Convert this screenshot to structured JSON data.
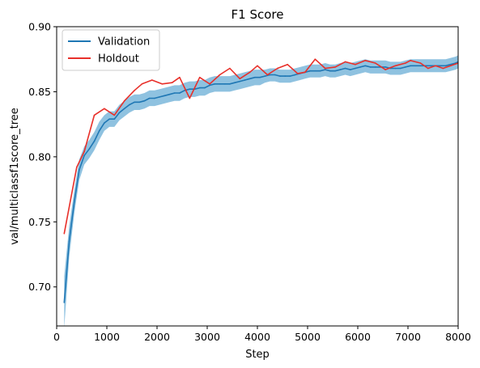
{
  "chart_data": {
    "type": "line",
    "title": "F1 Score",
    "xlabel": "Step",
    "ylabel": "val/multiclassf1score_tree",
    "xlim": [
      0,
      8000
    ],
    "ylim": [
      0.67,
      0.9
    ],
    "xticks": [
      0,
      1000,
      2000,
      3000,
      4000,
      5000,
      6000,
      7000,
      8000
    ],
    "xtick_labels": [
      "0",
      "1000",
      "2000",
      "3000",
      "4000",
      "5000",
      "6000",
      "7000",
      "8000"
    ],
    "yticks": [
      0.7,
      0.75,
      0.8,
      0.85,
      0.9
    ],
    "ytick_labels": [
      "0.70",
      "0.75",
      "0.80",
      "0.85",
      "0.90"
    ],
    "grid": false,
    "legend_position": "top-left",
    "series": [
      {
        "name": "Validation",
        "color": "#1f77b4",
        "band_color": "#6aaed6",
        "x": [
          150,
          250,
          350,
          450,
          550,
          650,
          750,
          850,
          950,
          1050,
          1150,
          1250,
          1350,
          1450,
          1550,
          1650,
          1750,
          1850,
          1950,
          2050,
          2150,
          2250,
          2350,
          2450,
          2550,
          2650,
          2750,
          2850,
          2950,
          3050,
          3150,
          3250,
          3350,
          3450,
          3550,
          3650,
          3750,
          3850,
          3950,
          4050,
          4150,
          4250,
          4350,
          4450,
          4550,
          4650,
          4750,
          4850,
          4950,
          5050,
          5150,
          5250,
          5350,
          5450,
          5550,
          5650,
          5750,
          5850,
          5950,
          6050,
          6150,
          6250,
          6350,
          6450,
          6550,
          6650,
          6750,
          6850,
          6950,
          7050,
          7150,
          7250,
          7350,
          7450,
          7550,
          7650,
          7750,
          7850,
          7950,
          8000
        ],
        "values": [
          0.688,
          0.735,
          0.765,
          0.79,
          0.801,
          0.806,
          0.812,
          0.82,
          0.826,
          0.829,
          0.829,
          0.834,
          0.837,
          0.84,
          0.842,
          0.842,
          0.843,
          0.845,
          0.845,
          0.846,
          0.847,
          0.848,
          0.849,
          0.849,
          0.851,
          0.852,
          0.852,
          0.853,
          0.853,
          0.855,
          0.856,
          0.856,
          0.856,
          0.856,
          0.857,
          0.858,
          0.859,
          0.86,
          0.861,
          0.861,
          0.862,
          0.863,
          0.863,
          0.862,
          0.862,
          0.862,
          0.863,
          0.864,
          0.865,
          0.866,
          0.866,
          0.866,
          0.867,
          0.866,
          0.866,
          0.867,
          0.868,
          0.867,
          0.868,
          0.869,
          0.87,
          0.869,
          0.869,
          0.869,
          0.869,
          0.868,
          0.868,
          0.868,
          0.869,
          0.87,
          0.87,
          0.87,
          0.87,
          0.87,
          0.87,
          0.87,
          0.87,
          0.871,
          0.872,
          0.873
        ],
        "band_halfwidth": [
          0.02,
          0.012,
          0.009,
          0.008,
          0.007,
          0.007,
          0.007,
          0.007,
          0.006,
          0.006,
          0.006,
          0.006,
          0.006,
          0.006,
          0.006,
          0.006,
          0.006,
          0.006,
          0.006,
          0.006,
          0.006,
          0.006,
          0.006,
          0.006,
          0.006,
          0.006,
          0.006,
          0.006,
          0.006,
          0.006,
          0.006,
          0.006,
          0.006,
          0.006,
          0.006,
          0.006,
          0.006,
          0.006,
          0.006,
          0.006,
          0.005,
          0.005,
          0.005,
          0.005,
          0.005,
          0.005,
          0.005,
          0.005,
          0.005,
          0.005,
          0.005,
          0.005,
          0.005,
          0.005,
          0.005,
          0.005,
          0.005,
          0.005,
          0.005,
          0.005,
          0.005,
          0.005,
          0.005,
          0.005,
          0.005,
          0.005,
          0.005,
          0.005,
          0.005,
          0.005,
          0.005,
          0.005,
          0.005,
          0.005,
          0.005,
          0.005,
          0.005,
          0.005,
          0.005,
          0.005
        ]
      },
      {
        "name": "Holdout",
        "color": "#e8302a",
        "x": [
          150,
          400,
          550,
          750,
          950,
          1150,
          1350,
          1550,
          1700,
          1900,
          2100,
          2300,
          2450,
          2650,
          2850,
          3050,
          3250,
          3450,
          3650,
          3850,
          4000,
          4200,
          4400,
          4600,
          4800,
          4950,
          5150,
          5350,
          5550,
          5750,
          5950,
          6150,
          6350,
          6550,
          6750,
          6950,
          7050,
          7250,
          7400,
          7550,
          7700,
          7850,
          8000
        ],
        "values": [
          0.741,
          0.792,
          0.804,
          0.832,
          0.837,
          0.832,
          0.843,
          0.851,
          0.856,
          0.859,
          0.856,
          0.857,
          0.861,
          0.845,
          0.861,
          0.856,
          0.863,
          0.868,
          0.86,
          0.865,
          0.87,
          0.863,
          0.868,
          0.871,
          0.864,
          0.865,
          0.875,
          0.868,
          0.869,
          0.873,
          0.871,
          0.874,
          0.872,
          0.867,
          0.87,
          0.872,
          0.874,
          0.872,
          0.868,
          0.87,
          0.868,
          0.87,
          0.872
        ]
      }
    ]
  }
}
